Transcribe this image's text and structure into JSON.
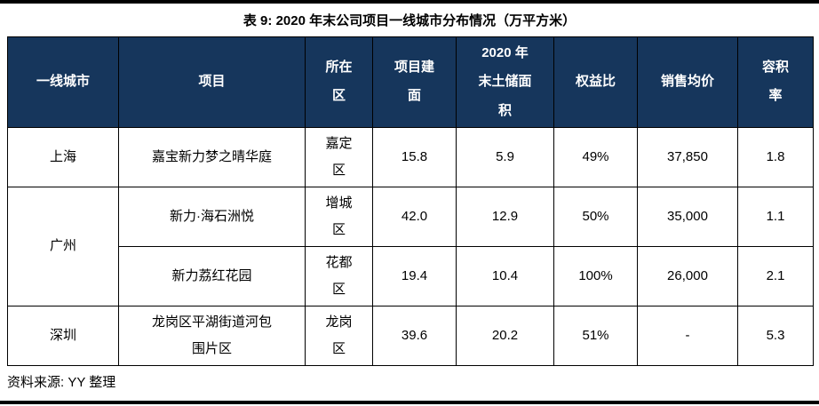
{
  "page": {
    "title": "表 9: 2020 年末公司项目一线城市分布情况（万平方米）",
    "source": "资料来源: YY 整理"
  },
  "colors": {
    "header_bg": "#16365C",
    "header_text": "#FFFFFF",
    "border": "#000000",
    "rule": "#000000"
  },
  "table": {
    "headers": {
      "city": "一线城市",
      "project": "项目",
      "district": "所在区",
      "gfa": "项目建面",
      "land_bank": "2020 年末土储面积",
      "equity_ratio": "权益比",
      "avg_price": "销售均价",
      "plot_ratio": "容积率"
    },
    "rows": [
      {
        "city": "上海",
        "project": "嘉宝新力梦之晴华庭",
        "district": "嘉定区",
        "gfa": "15.8",
        "land_bank": "5.9",
        "equity_ratio": "49%",
        "avg_price": "37,850",
        "plot_ratio": "1.8"
      },
      {
        "city": "广州",
        "project": "新力·海石洲悦",
        "district": "增城区",
        "gfa": "42.0",
        "land_bank": "12.9",
        "equity_ratio": "50%",
        "avg_price": "35,000",
        "plot_ratio": "1.1"
      },
      {
        "project": "新力荔红花园",
        "district": "花都区",
        "gfa": "19.4",
        "land_bank": "10.4",
        "equity_ratio": "100%",
        "avg_price": "26,000",
        "plot_ratio": "2.1"
      },
      {
        "city": "深圳",
        "project": "龙岗区平湖街道河包围片区",
        "district": "龙岗区",
        "gfa": "39.6",
        "land_bank": "20.2",
        "equity_ratio": "51%",
        "avg_price": "-",
        "plot_ratio": "5.3"
      }
    ]
  }
}
